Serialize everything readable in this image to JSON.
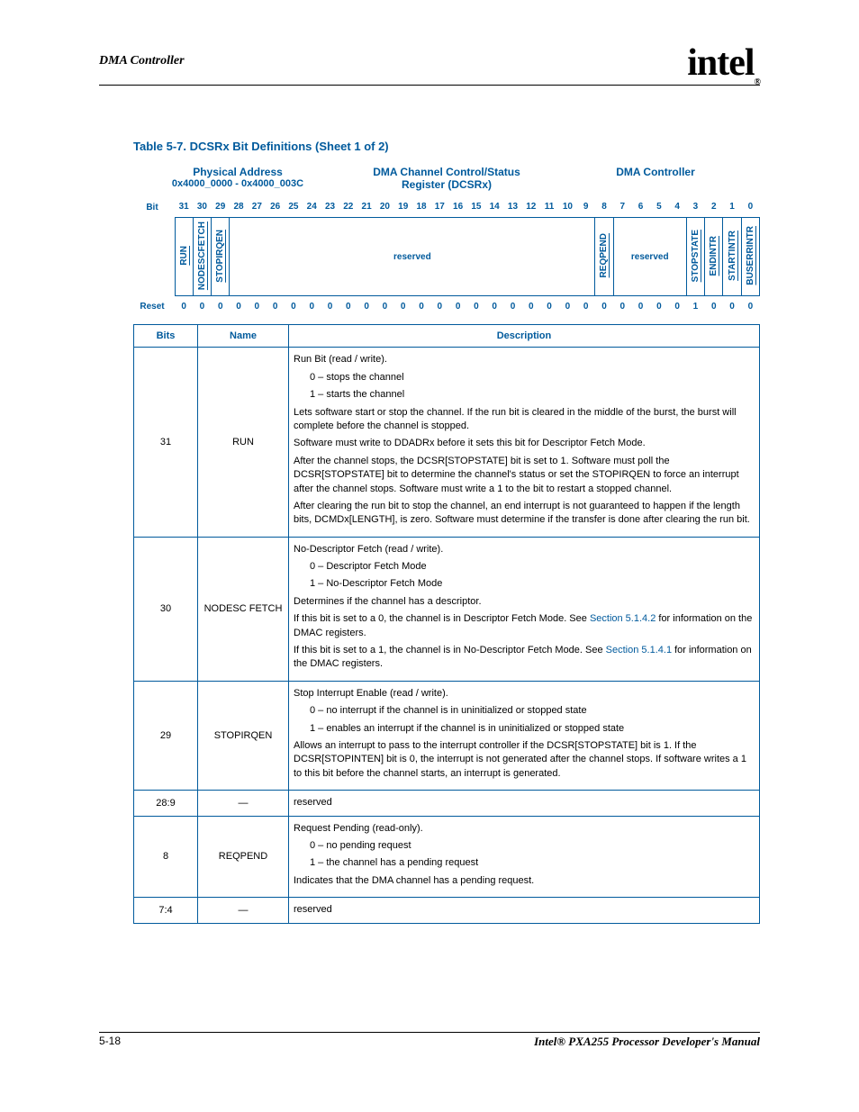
{
  "page": {
    "section_title": "DMA Controller",
    "logo_text": "intel",
    "logo_r": "®",
    "table_caption": "Table 5-7. DCSRx Bit Definitions (Sheet 1 of 2)",
    "page_number": "5-18",
    "footer_title": "Intel® PXA255 Processor Developer's Manual"
  },
  "register": {
    "addr_label": "Physical Address",
    "addr_value": "0x4000_0000 - 0x4000_003C",
    "name_line1": "DMA Channel Control/Status",
    "name_line2": "Register (DCSRx)",
    "module": "DMA Controller",
    "bit_label": "Bit",
    "reset_label": "Reset"
  },
  "bits": [
    "31",
    "30",
    "29",
    "28",
    "27",
    "26",
    "25",
    "24",
    "23",
    "22",
    "21",
    "20",
    "19",
    "18",
    "17",
    "16",
    "15",
    "14",
    "13",
    "12",
    "11",
    "10",
    "9",
    "8",
    "7",
    "6",
    "5",
    "4",
    "3",
    "2",
    "1",
    "0"
  ],
  "fields": {
    "f31": "RUN",
    "f30": "NODESCFETCH",
    "f29": "STOPIRQEN",
    "reserved1": "reserved",
    "f8": "REQPEND",
    "reserved2": "reserved",
    "f3": "STOPSTATE",
    "f2": "ENDINTR",
    "f1": "STARTINTR",
    "f0": "BUSERRINTR"
  },
  "reset_values": [
    "0",
    "0",
    "0",
    "0",
    "0",
    "0",
    "0",
    "0",
    "0",
    "0",
    "0",
    "0",
    "0",
    "0",
    "0",
    "0",
    "0",
    "0",
    "0",
    "0",
    "0",
    "0",
    "0",
    "0",
    "0",
    "0",
    "0",
    "0",
    "1",
    "0",
    "0",
    "0"
  ],
  "colors": {
    "blue": "#005a9c",
    "border": "#005a9c"
  },
  "def_header": {
    "bits": "Bits",
    "name": "Name",
    "desc": "Description"
  },
  "rows": [
    {
      "bits": "31",
      "name": "RUN",
      "desc": {
        "title": "Run Bit (read / write).",
        "opt0": "0 –   stops the channel",
        "opt1": "1 –   starts the channel",
        "p1": "Lets software start or stop the channel. If the run bit is cleared in the middle of the burst, the burst will complete before the channel is stopped.",
        "p2": "Software must write to DDADRx before it sets this bit for Descriptor Fetch Mode.",
        "p3": "After the channel stops, the DCSR[STOPSTATE] bit is set to 1. Software must poll the DCSR[STOPSTATE] bit to determine the channel's status or set the STOPIRQEN to force an interrupt after the channel stops. Software must write a 1 to the bit to restart a stopped channel.",
        "p4": "After clearing the run bit to stop the channel, an end interrupt is not guaranteed to happen if the length bits, DCMDx[LENGTH], is zero. Software must determine if the transfer is done after clearing the run bit."
      }
    },
    {
      "bits": "30",
      "name": "NODESC FETCH",
      "desc": {
        "title": "No-Descriptor Fetch (read / write).",
        "opt0": "0 –   Descriptor Fetch Mode",
        "opt1": "1 –   No-Descriptor Fetch Mode",
        "p1": "Determines if the channel has a descriptor.",
        "p2a": "If this bit is set to a 0, the channel is in Descriptor Fetch Mode. See ",
        "p2link": "Section 5.1.4.2",
        "p2b": " for information on the DMAC registers.",
        "p3a": "If this bit is set to a 1, the channel is in No-Descriptor Fetch Mode. See ",
        "p3link": "Section 5.1.4.1",
        "p3b": " for information on the DMAC registers."
      }
    },
    {
      "bits": "29",
      "name": "STOPIRQEN",
      "desc": {
        "title": "Stop Interrupt Enable (read / write).",
        "opt0": "0 –   no interrupt if the channel is in uninitialized or stopped state",
        "opt1": "1 –   enables an interrupt if the channel is in uninitialized or stopped state",
        "p1": "Allows an interrupt to pass to the interrupt controller if the DCSR[STOPSTATE] bit is 1. If the DCSR[STOPINTEN] bit is 0, the interrupt is not generated after the channel stops. If software writes a 1 to this bit before the channel starts, an interrupt is generated."
      }
    },
    {
      "bits": "28:9",
      "name": "—",
      "desc": {
        "title": "reserved"
      }
    },
    {
      "bits": "8",
      "name": "REQPEND",
      "desc": {
        "title": "Request Pending (read-only).",
        "opt0": "0 –   no pending request",
        "opt1": "1 –   the channel has a pending request",
        "p1": "Indicates that the DMA channel has a pending request."
      }
    },
    {
      "bits": "7:4",
      "name": "—",
      "desc": {
        "title": "reserved"
      }
    }
  ]
}
